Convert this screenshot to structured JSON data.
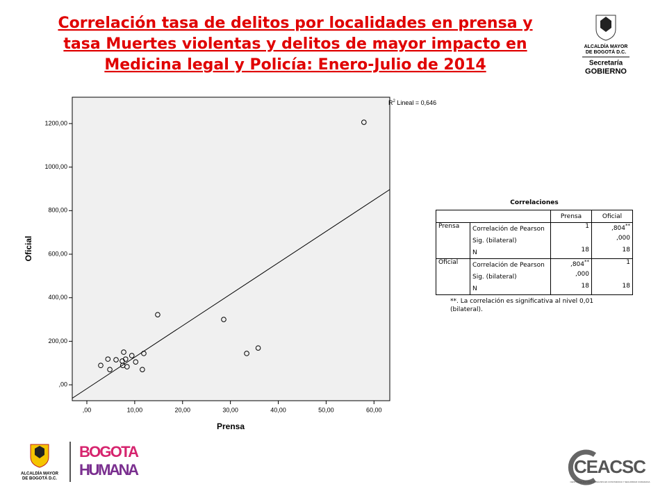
{
  "header": {
    "title_lines": [
      "Correlación tasa de delitos por localidades en prensa y",
      "tasa Muertes violentas y delitos de mayor impacto en",
      "Medicina legal y Policía: Enero-Julio de 2014"
    ]
  },
  "chart_data": {
    "type": "scatter",
    "x_label": "Prensa",
    "y_label": "Oficial",
    "x": [
      57.9,
      14.8,
      28.6,
      35.8,
      33.4,
      2.9,
      4.4,
      4.8,
      6.1,
      7.7,
      7.4,
      8.1,
      7.5,
      8.4,
      9.4,
      10.2,
      11.9,
      11.6
    ],
    "y": [
      1206,
      322,
      300,
      169,
      144,
      89,
      118,
      70,
      115,
      150,
      109,
      118,
      89,
      83,
      134,
      105,
      144,
      70
    ],
    "xlim": [
      -3.05,
      63.3
    ],
    "ylim": [
      -73,
      1321
    ],
    "xticks": [
      {
        "value": 0,
        "label": ",00"
      },
      {
        "value": 10,
        "label": "10,00"
      },
      {
        "value": 20,
        "label": "20,00"
      },
      {
        "value": 30,
        "label": "30,00"
      },
      {
        "value": 40,
        "label": "40,00"
      },
      {
        "value": 50,
        "label": "50,00"
      },
      {
        "value": 60,
        "label": "60,00"
      }
    ],
    "yticks": [
      {
        "value": 0,
        "label": ",00"
      },
      {
        "value": 200,
        "label": "200,00"
      },
      {
        "value": 400,
        "label": "400,00"
      },
      {
        "value": 600,
        "label": "600,00"
      },
      {
        "value": 800,
        "label": "800,00"
      },
      {
        "value": 1000,
        "label": "1000,00"
      },
      {
        "value": 1200,
        "label": "1200,00"
      }
    ],
    "fit_line": {
      "slope": 14.45,
      "intercept": -17.6
    },
    "r2_label": {
      "base": "R",
      "sup": "2",
      "text": " Lineal = 0,646"
    }
  },
  "table": {
    "title": "Correlaciones",
    "header": [
      "Prensa",
      "Oficial"
    ],
    "groups": [
      {
        "name": "Prensa",
        "rows": [
          {
            "label": "Correlación de Pearson",
            "cells": [
              {
                "text": "1"
              },
              {
                "text": ",804",
                "sup": "**"
              }
            ]
          },
          {
            "label": "Sig. (bilateral)",
            "cells": [
              null,
              {
                "text": ",000"
              }
            ]
          },
          {
            "label": "N",
            "cells": [
              {
                "text": "18"
              },
              {
                "text": "18"
              }
            ]
          }
        ]
      },
      {
        "name": "Oficial",
        "rows": [
          {
            "label": "Correlación de Pearson",
            "cells": [
              {
                "text": ",804",
                "sup": "**"
              },
              {
                "text": "1"
              }
            ]
          },
          {
            "label": "Sig. (bilateral)",
            "cells": [
              {
                "text": ",000"
              },
              null
            ]
          },
          {
            "label": "N",
            "cells": [
              {
                "text": "18"
              },
              {
                "text": "18"
              }
            ]
          }
        ]
      }
    ],
    "footnote": "**. La correlación es significativa al nivel 0,01 (bilateral)."
  },
  "logos": {
    "top_right": {
      "line1": "ALCALDÍA MAYOR",
      "line2": "DE BOGOTÁ D.C.",
      "line3": "Secretaría",
      "line4": "GOBIERNO"
    },
    "bottom_left": {
      "line1": "ALCALDÍA MAYOR",
      "line2": "DE BOGOTÁ D.C.",
      "brand1": "BOGOTA",
      "brand2": "HUMANA"
    },
    "bottom_right": {
      "brand": "CEACSC",
      "caption": "CENTRO DE ESTUDIO Y ANÁLISIS EN CONVIVENCIA Y SEGURIDAD CIUDADANA"
    }
  }
}
